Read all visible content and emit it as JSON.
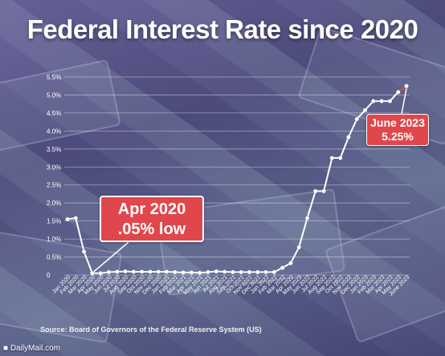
{
  "title": "Federal Interest Rate since 2020",
  "source": "Source: Board of Governors of the Federal Reserve System (US)",
  "watermark": "■ DailyMail.com",
  "callouts": {
    "low": {
      "line1": "Apr 2020",
      "line2": ".05% low"
    },
    "high": {
      "line1": "June 2023",
      "line2": "5.25%"
    }
  },
  "colors": {
    "line": "#ffffff",
    "callout_fill": "#e0474c",
    "latest_segment": "#e0474c"
  },
  "chart_data": {
    "type": "line",
    "title": "Federal Interest Rate since 2020",
    "xlabel": "",
    "ylabel": "",
    "ylim": [
      0,
      5.5
    ],
    "y_tick_labels": [
      "0",
      "0.5%",
      "1.0%",
      "1.5%",
      "2.0%",
      "2.5%",
      "3.0%",
      "3.5%",
      "4.0%",
      "4.5%",
      "5.0%",
      "5.5%"
    ],
    "grid": true,
    "x": [
      "Jan 2020",
      "Feb 2020",
      "Mar 2020",
      "Apr 2020",
      "May 2020",
      "Jun 2020",
      "Jul 2020",
      "Aug 2020",
      "Sep 2020",
      "Oct 2020",
      "Nov 2020",
      "Dec 2020",
      "Jan 2021",
      "Feb 2021",
      "Mar 2021",
      "Apr 2021",
      "May 2021",
      "Jun 2021",
      "Jul 2021",
      "Aug 2021",
      "Sep 2021",
      "Oct 2021",
      "Nov 2021",
      "Dec 2021",
      "Jan 2022",
      "Feb 2022",
      "Mar 2022",
      "Apr 2022",
      "May 2022",
      "Jun 2022",
      "Jul 2022",
      "Aug 2022",
      "Sep 2022",
      "Oct 2022",
      "Nov 2022",
      "Dec 2022",
      "Jan 2023",
      "Feb 2023",
      "Mar 2023",
      "Apr 2023",
      "May 2023",
      "June 2023"
    ],
    "values": [
      1.55,
      1.58,
      0.65,
      0.05,
      0.05,
      0.08,
      0.09,
      0.1,
      0.09,
      0.09,
      0.09,
      0.09,
      0.09,
      0.08,
      0.07,
      0.07,
      0.06,
      0.08,
      0.1,
      0.09,
      0.08,
      0.08,
      0.08,
      0.08,
      0.08,
      0.08,
      0.2,
      0.33,
      0.77,
      1.58,
      2.33,
      2.33,
      3.25,
      3.25,
      3.83,
      4.33,
      4.58,
      4.83,
      4.83,
      4.83,
      5.08,
      5.25
    ]
  }
}
